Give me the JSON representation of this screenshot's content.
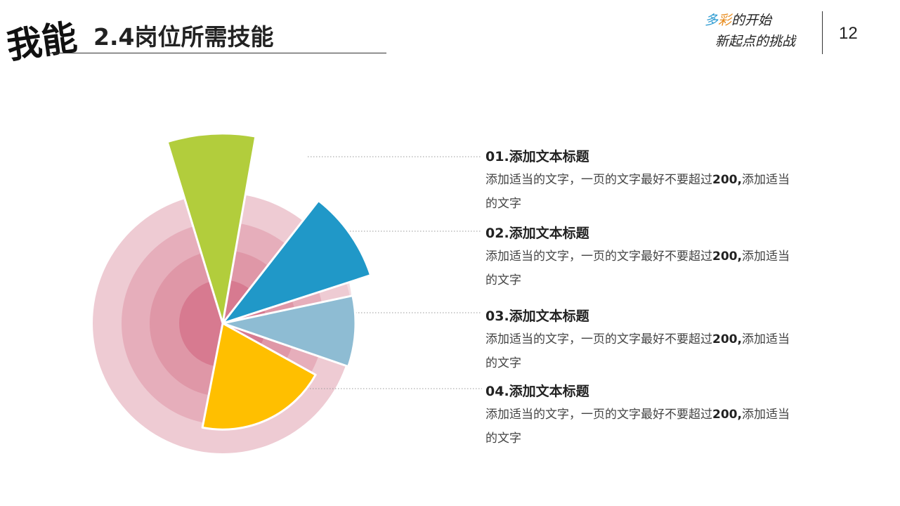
{
  "header": {
    "logo_text": "我能",
    "title": "2.4岗位所需技能",
    "slogan_line1_a": "多",
    "slogan_line1_b": "彩",
    "slogan_line1_c": "的开始",
    "slogan_line2": "新起点的挑战",
    "page_number": "12"
  },
  "colors": {
    "ring_outer": "#eecbd3",
    "ring_2": "#e6aebb",
    "ring_3": "#df97a7",
    "ring_inner": "#d77a90",
    "item1": "#b2cd3c",
    "item2": "#2098c8",
    "item3": "#8ebcd3",
    "item4": "#ffbf00"
  },
  "chart_data": {
    "type": "polar-area",
    "rings": 4,
    "series": [
      {
        "label": "01.添加文本标题",
        "value": 100,
        "color": "#b2cd3c"
      },
      {
        "label": "02.添加文本标题",
        "value": 82,
        "color": "#2098c8"
      },
      {
        "label": "03.添加文本标题",
        "value": 70,
        "color": "#8ebcd3"
      },
      {
        "label": "04.添加文本标题",
        "value": 56,
        "color": "#ffbf00"
      }
    ]
  },
  "items": [
    {
      "title": "01.添加文本标题",
      "body_a": "添加适当的文字，一页的文字最好不要超过",
      "body_num": "200,",
      "body_b": "添加适当的文字"
    },
    {
      "title": "02.添加文本标题",
      "body_a": "添加适当的文字，一页的文字最好不要超过",
      "body_num": "200,",
      "body_b": "添加适当的文字"
    },
    {
      "title": "03.添加文本标题",
      "body_a": "添加适当的文字，一页的文字最好不要超过",
      "body_num": "200,",
      "body_b": "添加适当的文字"
    },
    {
      "title": "04.添加文本标题",
      "body_a": "添加适当的文字，一页的文字最好不要超过",
      "body_num": "200,",
      "body_b": "添加适当的文字"
    }
  ]
}
